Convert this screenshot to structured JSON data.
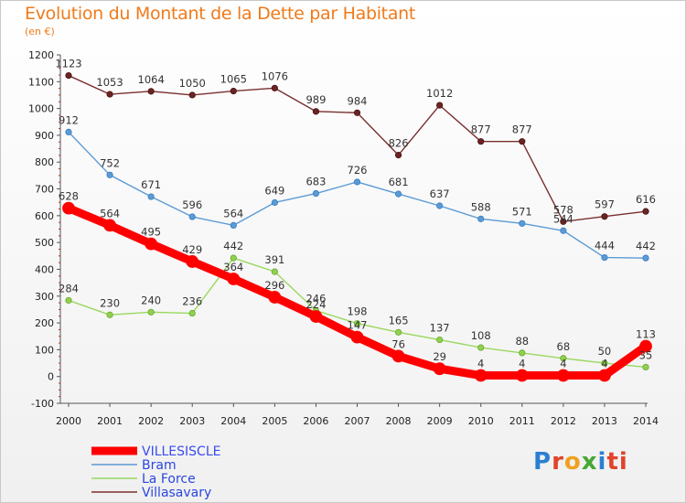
{
  "header": {
    "title": "Evolution du Montant de la Dette par Habitant",
    "subtitle": "(en €)"
  },
  "brand": {
    "logo_text": "Proxiti",
    "letters": [
      "P",
      "r",
      "o",
      "x",
      "i",
      "ti"
    ]
  },
  "chart_data": {
    "type": "line",
    "x": [
      "2000",
      "2001",
      "2002",
      "2003",
      "2004",
      "2005",
      "2006",
      "2007",
      "2008",
      "2009",
      "2010",
      "2011",
      "2012",
      "2013",
      "2014"
    ],
    "ylim": [
      -100,
      1200
    ],
    "yticks": [
      -100,
      0,
      100,
      200,
      300,
      400,
      500,
      600,
      700,
      800,
      900,
      1000,
      1100,
      1200
    ],
    "grid": false,
    "legend_position": "bottom-left",
    "series": [
      {
        "name": "VILLESISCLE",
        "color": "#ff0000",
        "values": [
          628,
          564,
          495,
          429,
          364,
          296,
          224,
          147,
          76,
          29,
          4,
          4,
          4,
          4,
          113
        ]
      },
      {
        "name": "Bram",
        "color": "#5b9bd5",
        "values": [
          912,
          752,
          671,
          596,
          564,
          649,
          683,
          726,
          681,
          637,
          588,
          571,
          544,
          444,
          442
        ]
      },
      {
        "name": "La Force",
        "color": "#8fd14f",
        "values": [
          284,
          230,
          240,
          236,
          442,
          391,
          246,
          198,
          165,
          137,
          108,
          88,
          68,
          50,
          35
        ]
      },
      {
        "name": "Villasavary",
        "color": "#6b2424",
        "values": [
          1123,
          1053,
          1064,
          1050,
          1065,
          1076,
          989,
          984,
          826,
          1012,
          877,
          877,
          578,
          597,
          616
        ]
      }
    ]
  }
}
